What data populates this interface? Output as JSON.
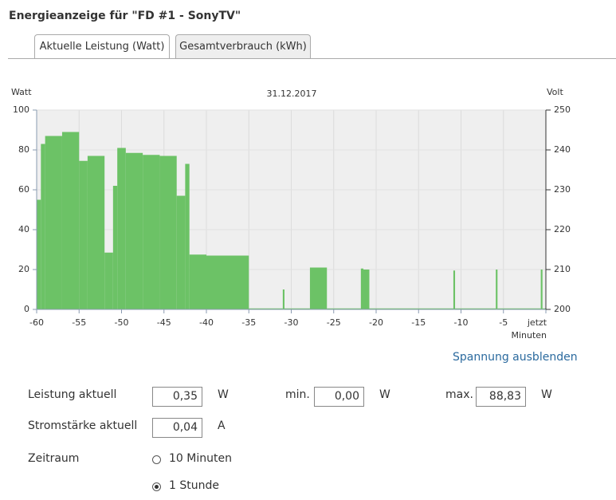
{
  "header": {
    "title": "Energieanzeige für \"FD #1 - SonyTV\""
  },
  "tabs": [
    "Aktuelle Leistung (Watt)",
    "Gesamtverbrauch (kWh)"
  ],
  "chart_data": {
    "type": "histogram",
    "title": "31.12.2017",
    "y_label": "Watt",
    "y2_label": "Volt",
    "x_label": "Minuten",
    "bins": [
      -60,
      -59.5,
      -59,
      -57,
      -55,
      -54,
      -52,
      -51,
      -50.5,
      -49.5,
      -47.5,
      -45.5,
      -43.5,
      -42.5,
      -42,
      -40,
      -35,
      -31,
      -30.8,
      -27.8,
      -25.8,
      -21.8,
      -21.5,
      -20.8,
      -10.9,
      -10.7,
      -5.9,
      -5.7,
      -0.6,
      -0.4,
      0
    ],
    "values": [
      55,
      83,
      87,
      89,
      74.5,
      77,
      28.5,
      62,
      81,
      78.5,
      77.5,
      77,
      57,
      73,
      27.5,
      27,
      0.5,
      10,
      0.5,
      21,
      0.5,
      20.5,
      20,
      0.5,
      19.5,
      0.5,
      20,
      0.5,
      20,
      0.5
    ],
    "color": "#6cc266",
    "xlim": [
      -60,
      0
    ],
    "xticks": [
      -60,
      -55,
      -50,
      -45,
      -40,
      -35,
      -30,
      -25,
      -20,
      -15,
      -10,
      -5,
      {
        "value": 0,
        "label": "jetzt"
      }
    ],
    "ylim": [
      0,
      100
    ],
    "yticks": [
      0,
      20,
      40,
      60,
      80,
      100
    ],
    "y2lim": [
      200,
      250
    ],
    "y2ticks": [
      200,
      210,
      220,
      230,
      240,
      250
    ],
    "grid": true
  },
  "toggle_link": "Spannung ausblenden",
  "fields": [
    {
      "label": "Leistung aktuell",
      "value": "0,35",
      "unit": "W"
    },
    {
      "label": "min.",
      "value": "0,00",
      "unit": "W"
    },
    {
      "label": "max.",
      "value": "88,83",
      "unit": "W"
    },
    {
      "label": "Stromstärke aktuell",
      "value": "0,04",
      "unit": "A"
    }
  ],
  "period": {
    "label": "Zeitraum",
    "options": [
      "10 Minuten",
      "1 Stunde"
    ],
    "selected_index": 1
  }
}
